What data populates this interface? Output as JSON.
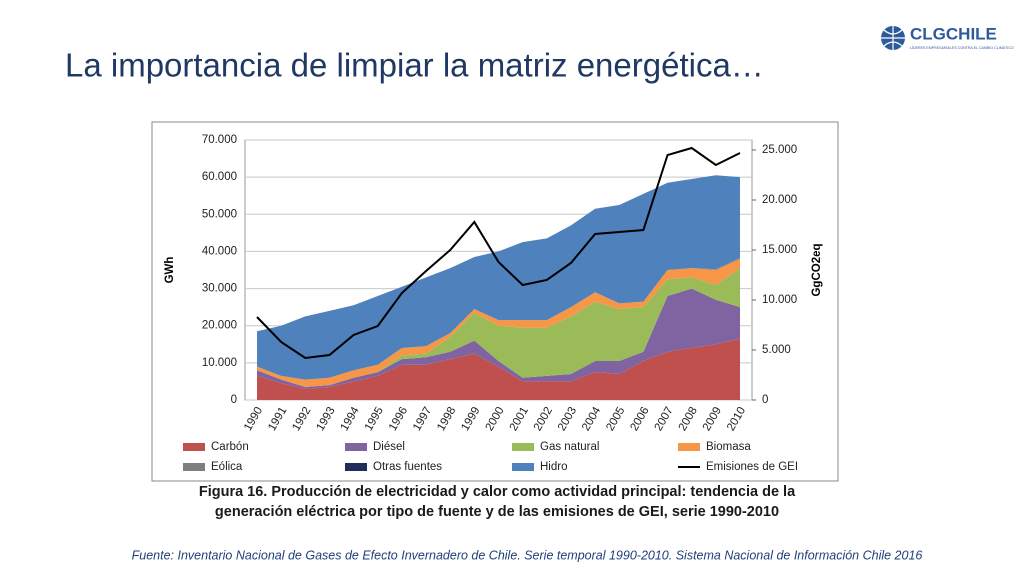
{
  "header": {
    "title": "La importancia de limpiar la matriz energética…",
    "logo": {
      "name": "CLGCHILE",
      "tagline": "LÍDERES EMPRESARIALES CONTRA EL CAMBIO CLIMÁTICO"
    }
  },
  "chart_data": {
    "type": "area",
    "ylabel": "GWh",
    "y2label": "GgCO2eq",
    "categories": [
      "1990",
      "1991",
      "1992",
      "1993",
      "1994",
      "1995",
      "1996",
      "1997",
      "1998",
      "1999",
      "2000",
      "2001",
      "2002",
      "2003",
      "2004",
      "2005",
      "2006",
      "2007",
      "2008",
      "2009",
      "2010"
    ],
    "ylim": [
      0,
      70000
    ],
    "yticks": [
      0,
      {
        "value": 10000,
        "label": "10.000"
      },
      {
        "value": 20000,
        "label": "20.000"
      },
      {
        "value": 30000,
        "label": "30.000"
      },
      {
        "value": 40000,
        "label": "40.000"
      },
      {
        "value": 50000,
        "label": "50.000"
      },
      {
        "value": 60000,
        "label": "60.000"
      },
      {
        "value": 70000,
        "label": "70.000"
      }
    ],
    "y2lim": [
      0,
      26000
    ],
    "y2ticks": [
      0,
      {
        "value": 5000,
        "label": "5.000"
      },
      {
        "value": 10000,
        "label": "10.000"
      },
      {
        "value": 15000,
        "label": "15.000"
      },
      {
        "value": 20000,
        "label": "20.000"
      },
      {
        "value": 25000,
        "label": "25.000"
      }
    ],
    "grid": true,
    "stacked": true,
    "series": [
      {
        "name": "Carbón",
        "color": "#c0504d",
        "values": [
          6500,
          4500,
          3000,
          3500,
          5000,
          6500,
          9500,
          9500,
          11000,
          12500,
          9000,
          5000,
          5000,
          5000,
          7500,
          7000,
          10500,
          13000,
          14000,
          15000,
          16500
        ]
      },
      {
        "name": "Diésel",
        "color": "#8064a2",
        "values": [
          1500,
          1000,
          500,
          500,
          1000,
          1000,
          1500,
          2000,
          2000,
          3500,
          1500,
          1000,
          1500,
          2000,
          3000,
          3500,
          2500,
          15000,
          16000,
          12000,
          8500
        ]
      },
      {
        "name": "Gas natural",
        "color": "#9bbb59",
        "values": [
          0,
          0,
          0,
          0,
          0,
          0,
          1000,
          1000,
          4000,
          7500,
          9500,
          13500,
          13000,
          15500,
          16000,
          14000,
          12000,
          4500,
          3000,
          4000,
          10500
        ]
      },
      {
        "name": "Biomasa",
        "color": "#f79646",
        "values": [
          1000,
          1000,
          2000,
          2000,
          2000,
          2000,
          2000,
          2000,
          1000,
          1000,
          1500,
          2000,
          2000,
          2500,
          2500,
          1500,
          1500,
          2500,
          2500,
          4000,
          2500
        ]
      },
      {
        "name": "Eólica",
        "color": "#7f7f7f",
        "values": [
          0,
          0,
          0,
          0,
          0,
          0,
          0,
          0,
          0,
          0,
          0,
          0,
          0,
          0,
          0,
          0,
          0,
          0,
          0,
          200,
          300
        ]
      },
      {
        "name": "Otras fuentes",
        "color": "#1f2d5a",
        "values": [
          0,
          0,
          0,
          0,
          0,
          0,
          0,
          0,
          0,
          0,
          0,
          0,
          0,
          0,
          0,
          0,
          0,
          0,
          0,
          0,
          0
        ]
      },
      {
        "name": "Hidro",
        "color": "#4f81bd",
        "values": [
          9500,
          13500,
          17000,
          18000,
          17500,
          18500,
          16500,
          18500,
          17500,
          14000,
          18500,
          21000,
          22000,
          22000,
          22500,
          26500,
          29000,
          23500,
          24000,
          25300,
          21700
        ]
      },
      {
        "name": "Emisiones de GEI",
        "color": "#000000",
        "type": "line",
        "axis": "y2",
        "values": [
          8300,
          5800,
          4200,
          4500,
          6500,
          7400,
          10700,
          12900,
          15000,
          17800,
          13800,
          11500,
          12000,
          13700,
          16600,
          16800,
          17000,
          24500,
          25200,
          23500,
          24700
        ]
      }
    ]
  },
  "caption": [
    "Figura 16. Producción de electricidad y calor como actividad principal: tendencia de la",
    "generación eléctrica por tipo de fuente y de las emisiones de GEI, serie 1990-2010"
  ],
  "source": "Fuente: Inventario Nacional de Gases de Efecto Invernadero de Chile. Serie temporal 1990-2010. Sistema Nacional de Información Chile 2016"
}
